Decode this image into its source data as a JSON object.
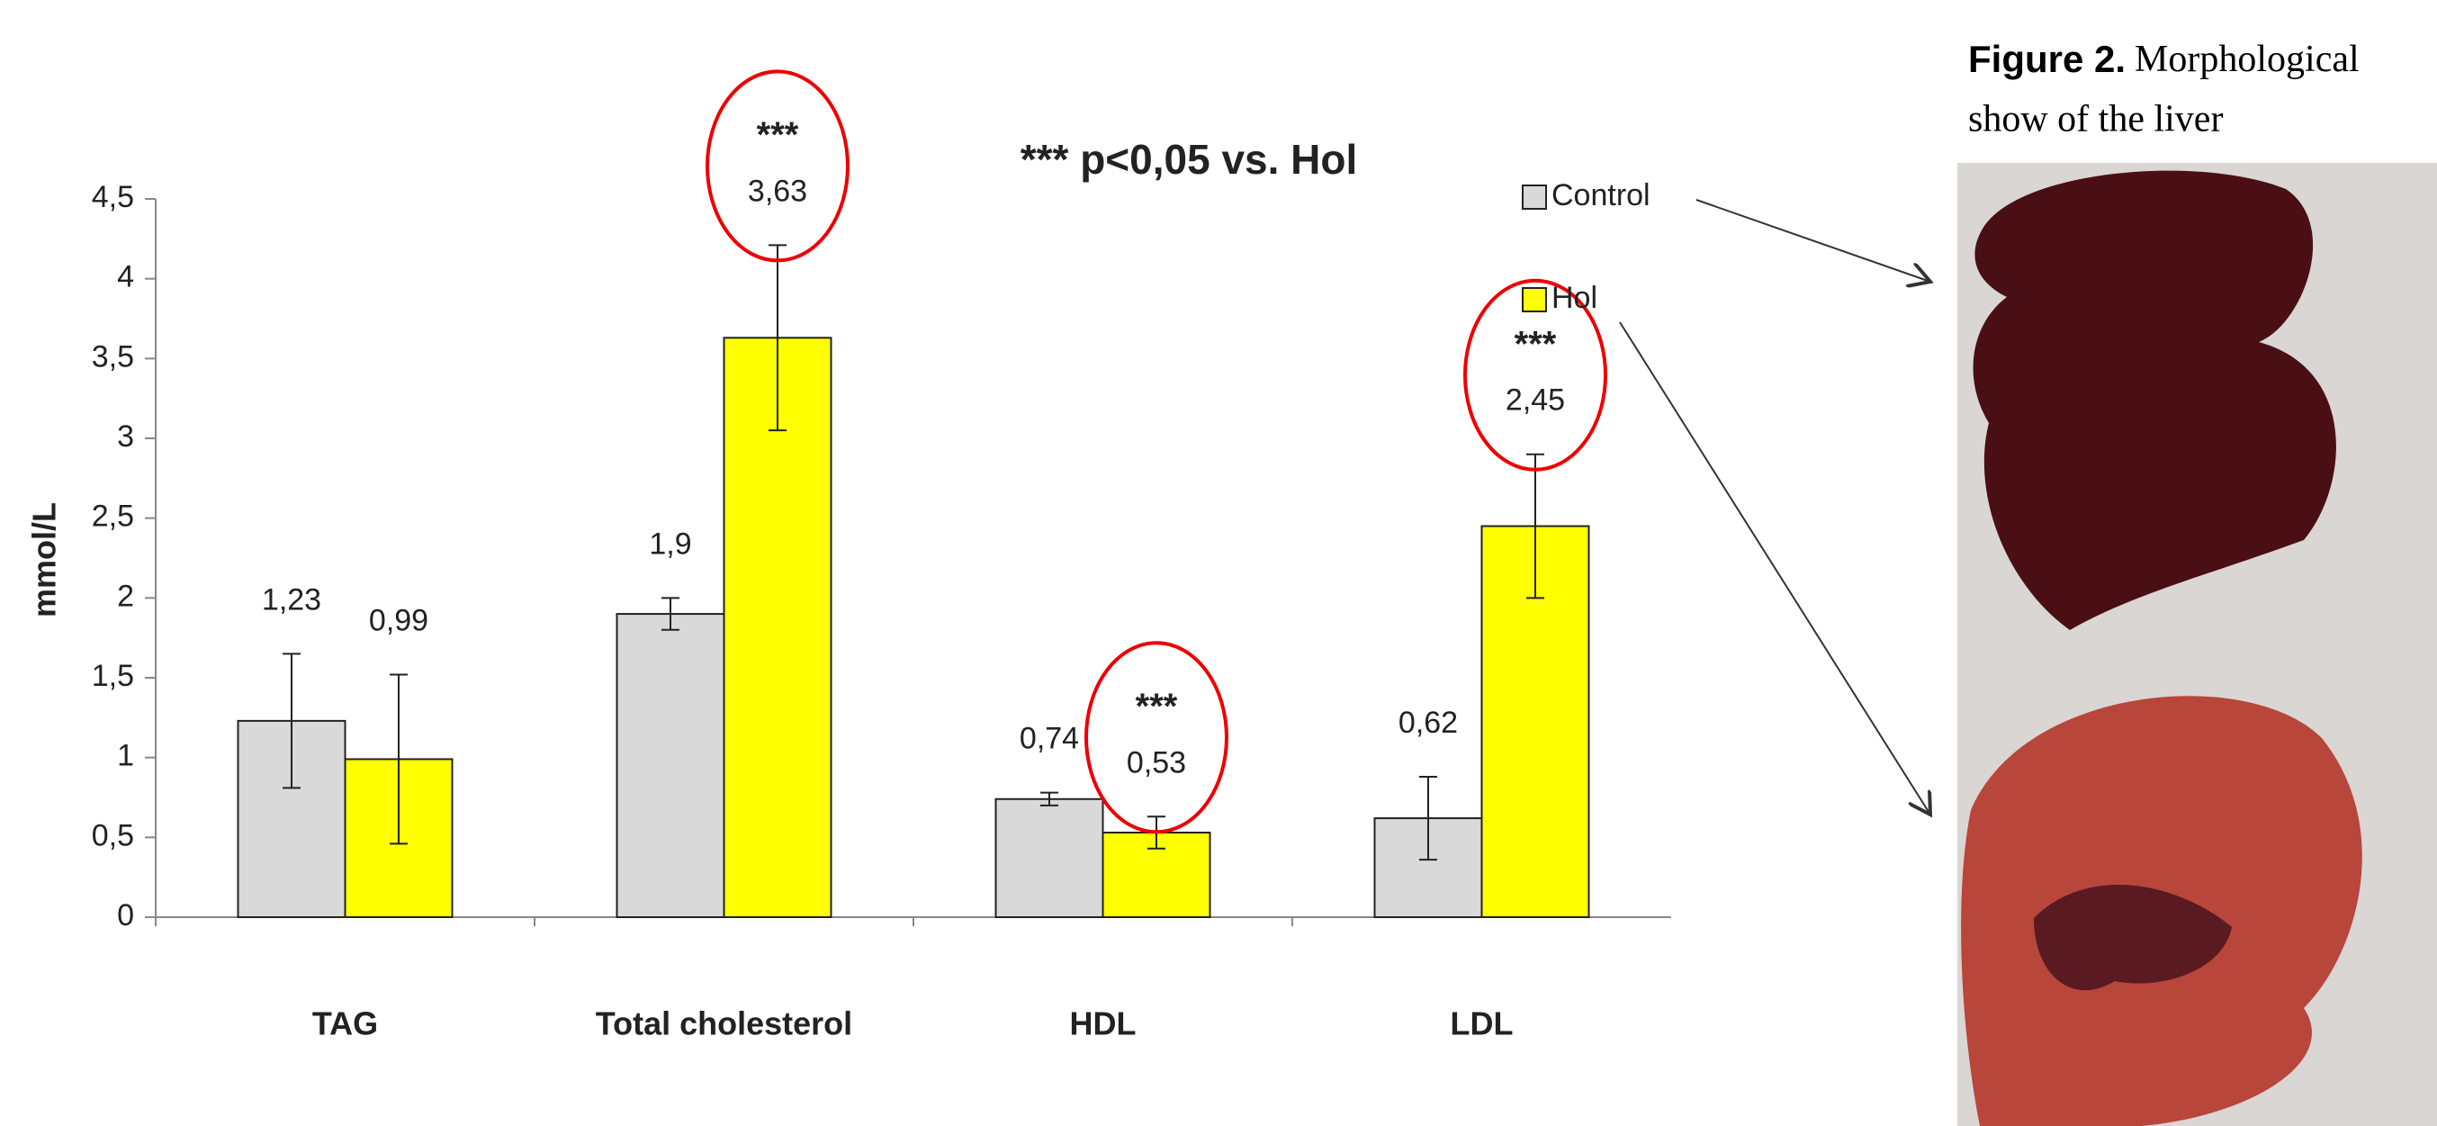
{
  "chart_data": {
    "type": "bar",
    "annotation": "*** p<0,05 vs. Hol",
    "ylabel": "mmol/L",
    "categories": [
      "TAG",
      "Total cholesterol",
      "HDL",
      "LDL"
    ],
    "series": [
      {
        "name": "Control",
        "color": "#d9d9d9",
        "values": [
          1.23,
          1.9,
          0.74,
          0.62
        ],
        "value_labels": [
          "1,23",
          "1,9",
          "0,74",
          "0,62"
        ],
        "errors": [
          0.42,
          0.1,
          0.04,
          0.26
        ]
      },
      {
        "name": "Hol",
        "color": "#ffff00",
        "values": [
          0.99,
          3.63,
          0.53,
          2.45
        ],
        "value_labels": [
          "0,99",
          "3,63",
          "0,53",
          "2,45"
        ],
        "errors": [
          0.53,
          0.58,
          0.1,
          0.45
        ],
        "marks": [
          null,
          "***",
          "***",
          "***"
        ]
      }
    ],
    "ylim": [
      0,
      4.5
    ],
    "yticks": [
      0,
      {
        "value": 0.5,
        "label": "0,5"
      },
      1,
      {
        "value": 1.5,
        "label": "1,5"
      },
      2,
      {
        "value": 2.5,
        "label": "2,5"
      },
      3,
      {
        "value": 3.5,
        "label": "3,5"
      },
      4,
      {
        "value": 4.5,
        "label": "4,5"
      }
    ]
  },
  "figure": {
    "label": "Figure 2.",
    "lines": [
      "Morphological",
      "show of  the liver"
    ]
  }
}
